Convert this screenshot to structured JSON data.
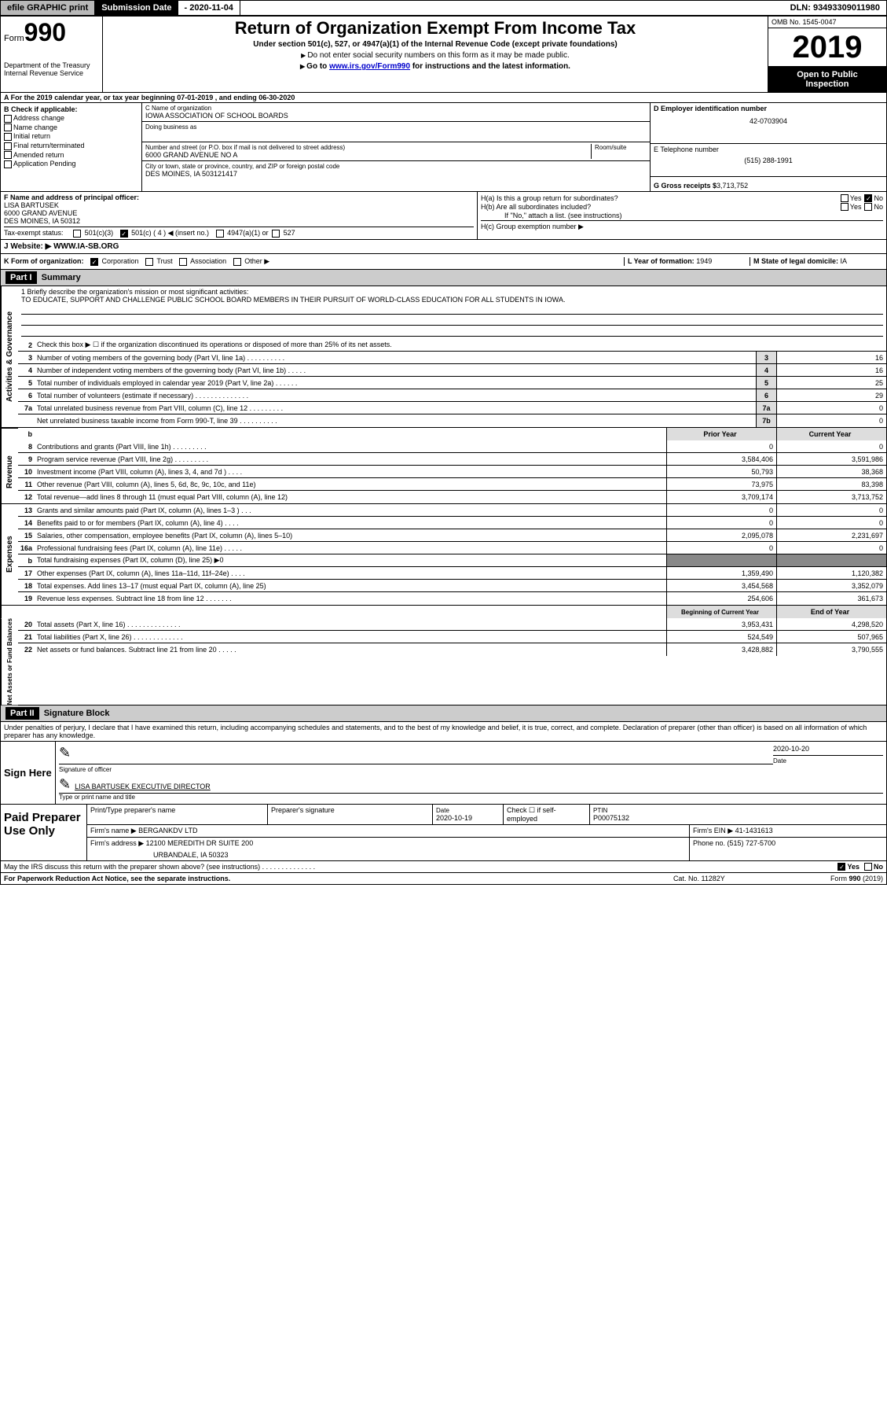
{
  "topbar": {
    "efile": "efile GRAPHIC print",
    "subdate_lbl": "Submission Date",
    "subdate_val": "- 2020-11-04",
    "dln": "DLN: 93493309011980"
  },
  "header": {
    "form_word": "Form",
    "form_num": "990",
    "dept": "Department of the Treasury\nInternal Revenue Service",
    "title": "Return of Organization Exempt From Income Tax",
    "sub1": "Under section 501(c), 527, or 4947(a)(1) of the Internal Revenue Code (except private foundations)",
    "sub2": "Do not enter social security numbers on this form as it may be made public.",
    "sub3_pre": "Go to ",
    "sub3_link": "www.irs.gov/Form990",
    "sub3_post": " for instructions and the latest information.",
    "omb": "OMB No. 1545-0047",
    "year": "2019",
    "open1": "Open to Public",
    "open2": "Inspection"
  },
  "row_a": "For the 2019 calendar year, or tax year beginning 07-01-2019   , and ending 06-30-2020",
  "col_b": {
    "hdr": "B Check if applicable:",
    "items": [
      "Address change",
      "Name change",
      "Initial return",
      "Final return/terminated",
      "Amended return",
      "Application Pending"
    ]
  },
  "col_c": {
    "name_lbl": "C Name of organization",
    "name": "IOWA ASSOCIATION OF SCHOOL BOARDS",
    "dba": "Doing business as",
    "addr_lbl": "Number and street (or P.O. box if mail is not delivered to street address)",
    "room": "Room/suite",
    "addr": "6000 GRAND AVENUE NO A",
    "city_lbl": "City or town, state or province, country, and ZIP or foreign postal code",
    "city": "DES MOINES, IA  503121417"
  },
  "col_d": {
    "ein_lbl": "D Employer identification number",
    "ein": "42-0703904",
    "tel_lbl": "E Telephone number",
    "tel": "(515) 288-1991",
    "gross_lbl": "G Gross receipts $",
    "gross": "3,713,752"
  },
  "officer": {
    "lbl": "F  Name and address of principal officer:",
    "name": "LISA BARTUSEK",
    "addr1": "6000 GRAND AVENUE",
    "addr2": "DES MOINES, IA  50312"
  },
  "h": {
    "a_lbl": "H(a)  Is this a group return for subordinates?",
    "yes": "Yes",
    "no": "No",
    "b_lbl": "H(b)  Are all subordinates included?",
    "b_note": "If \"No,\" attach a list. (see instructions)",
    "c_lbl": "H(c)  Group exemption number ▶"
  },
  "tax_status": {
    "lbl": "Tax-exempt status:",
    "o1": "501(c)(3)",
    "o2": "501(c) ( 4 ) ◀ (insert no.)",
    "o3": "4947(a)(1) or",
    "o4": "527"
  },
  "row_j": {
    "lbl": "J   Website: ▶",
    "val": "WWW.IA-SB.ORG"
  },
  "row_k": {
    "lbl": "K Form of organization:",
    "opts": [
      "Corporation",
      "Trust",
      "Association",
      "Other ▶"
    ],
    "l_lbl": "L Year of formation:",
    "l_val": "1949",
    "m_lbl": "M State of legal domicile:",
    "m_val": "IA"
  },
  "part1": {
    "num": "Part I",
    "title": "Summary"
  },
  "mission": {
    "lbl": "1   Briefly describe the organization's mission or most significant activities:",
    "text": "TO EDUCATE, SUPPORT AND CHALLENGE PUBLIC SCHOOL BOARD MEMBERS IN THEIR PURSUIT OF WORLD-CLASS EDUCATION FOR ALL STUDENTS IN IOWA."
  },
  "gov_section": "Activities & Governance",
  "gov": [
    {
      "n": "2",
      "t": "Check this box ▶ ☐  if the organization discontinued its operations or disposed of more than 25% of its net assets."
    },
    {
      "n": "3",
      "t": "Number of voting members of the governing body (Part VI, line 1a)  .  .  .  .  .  .  .  .  .  .",
      "b": "3",
      "v": "16"
    },
    {
      "n": "4",
      "t": "Number of independent voting members of the governing body (Part VI, line 1b)  .  .  .  .  .",
      "b": "4",
      "v": "16"
    },
    {
      "n": "5",
      "t": "Total number of individuals employed in calendar year 2019 (Part V, line 2a)  .  .  .  .  .  .",
      "b": "5",
      "v": "25"
    },
    {
      "n": "6",
      "t": "Total number of volunteers (estimate if necessary)   .  .  .  .  .  .  .  .  .  .  .  .  .  .",
      "b": "6",
      "v": "29"
    },
    {
      "n": "7a",
      "t": "Total unrelated business revenue from Part VIII, column (C), line 12  .  .  .  .  .  .  .  .  .",
      "b": "7a",
      "v": "0"
    },
    {
      "n": "",
      "t": "Net unrelated business taxable income from Form 990-T, line 39   .  .  .  .  .  .  .  .  .  .",
      "b": "7b",
      "v": "0"
    }
  ],
  "col_hdrs": {
    "prior": "Prior Year",
    "current": "Current Year"
  },
  "rev_section": "Revenue",
  "rev": [
    {
      "n": "8",
      "t": "Contributions and grants (Part VIII, line 1h)  .  .  .  .  .  .  .  .  .",
      "p": "0",
      "c": "0"
    },
    {
      "n": "9",
      "t": "Program service revenue (Part VIII, line 2g)   .  .  .  .  .  .  .  .  .",
      "p": "3,584,406",
      "c": "3,591,986"
    },
    {
      "n": "10",
      "t": "Investment income (Part VIII, column (A), lines 3, 4, and 7d )  .  .  .  .",
      "p": "50,793",
      "c": "38,368"
    },
    {
      "n": "11",
      "t": "Other revenue (Part VIII, column (A), lines 5, 6d, 8c, 9c, 10c, and 11e)",
      "p": "73,975",
      "c": "83,398"
    },
    {
      "n": "12",
      "t": "Total revenue—add lines 8 through 11 (must equal Part VIII, column (A), line 12)",
      "p": "3,709,174",
      "c": "3,713,752"
    }
  ],
  "exp_section": "Expenses",
  "exp": [
    {
      "n": "13",
      "t": "Grants and similar amounts paid (Part IX, column (A), lines 1–3 )  .  .  .",
      "p": "0",
      "c": "0"
    },
    {
      "n": "14",
      "t": "Benefits paid to or for members (Part IX, column (A), line 4)  .  .  .  .",
      "p": "0",
      "c": "0"
    },
    {
      "n": "15",
      "t": "Salaries, other compensation, employee benefits (Part IX, column (A), lines 5–10)",
      "p": "2,095,078",
      "c": "2,231,697"
    },
    {
      "n": "16a",
      "t": "Professional fundraising fees (Part IX, column (A), line 11e)  .  .  .  .  .",
      "p": "0",
      "c": "0"
    },
    {
      "n": "b",
      "t": "Total fundraising expenses (Part IX, column (D), line 25) ▶0",
      "p": "",
      "c": "",
      "shade": true
    },
    {
      "n": "17",
      "t": "Other expenses (Part IX, column (A), lines 11a–11d, 11f–24e)  .  .  .  .",
      "p": "1,359,490",
      "c": "1,120,382"
    },
    {
      "n": "18",
      "t": "Total expenses. Add lines 13–17 (must equal Part IX, column (A), line 25)",
      "p": "3,454,568",
      "c": "3,352,079"
    },
    {
      "n": "19",
      "t": "Revenue less expenses. Subtract line 18 from line 12  .  .  .  .  .  .  .",
      "p": "254,606",
      "c": "361,673"
    }
  ],
  "net_section": "Net Assets or Fund Balances",
  "net_hdrs": {
    "begin": "Beginning of Current Year",
    "end": "End of Year"
  },
  "net": [
    {
      "n": "20",
      "t": "Total assets (Part X, line 16)  .  .  .  .  .  .  .  .  .  .  .  .  .  .",
      "p": "3,953,431",
      "c": "4,298,520"
    },
    {
      "n": "21",
      "t": "Total liabilities (Part X, line 26)  .  .  .  .  .  .  .  .  .  .  .  .  .",
      "p": "524,549",
      "c": "507,965"
    },
    {
      "n": "22",
      "t": "Net assets or fund balances. Subtract line 21 from line 20  .  .  .  .  .",
      "p": "3,428,882",
      "c": "3,790,555"
    }
  ],
  "part2": {
    "num": "Part II",
    "title": "Signature Block"
  },
  "penalty": "Under penalties of perjury, I declare that I have examined this return, including accompanying schedules and statements, and to the best of my knowledge and belief, it is true, correct, and complete. Declaration of preparer (other than officer) is based on all information of which preparer has any knowledge.",
  "sign": {
    "here": "Sign Here",
    "sig_lbl": "Signature of officer",
    "date": "2020-10-20",
    "date_lbl": "Date",
    "name": "LISA BARTUSEK  EXECUTIVE DIRECTOR",
    "name_lbl": "Type or print name and title"
  },
  "paid": {
    "lbl": "Paid Preparer Use Only",
    "r1": {
      "c1": "Print/Type preparer's name",
      "c2": "Preparer's signature",
      "c3_lbl": "Date",
      "c3": "2020-10-19",
      "c4": "Check ☐  if self-employed",
      "c5_lbl": "PTIN",
      "c5": "P00075132"
    },
    "r2": {
      "c1": "Firm's name     ▶ BERGANKDV LTD",
      "c2": "Firm's EIN ▶ 41-1431613"
    },
    "r3": {
      "c1": "Firm's address ▶ 12100 MEREDITH DR SUITE 200",
      "c2": "Phone no. (515) 727-5700"
    },
    "r3b": "URBANDALE, IA  50323"
  },
  "discuss": "May the IRS discuss this return with the preparer shown above? (see instructions)   .  .  .  .  .  .  .  .  .  .  .  .  .  .",
  "footer": {
    "left": "For Paperwork Reduction Act Notice, see the separate instructions.",
    "mid": "Cat. No. 11282Y",
    "right": "Form 990 (2019)"
  }
}
